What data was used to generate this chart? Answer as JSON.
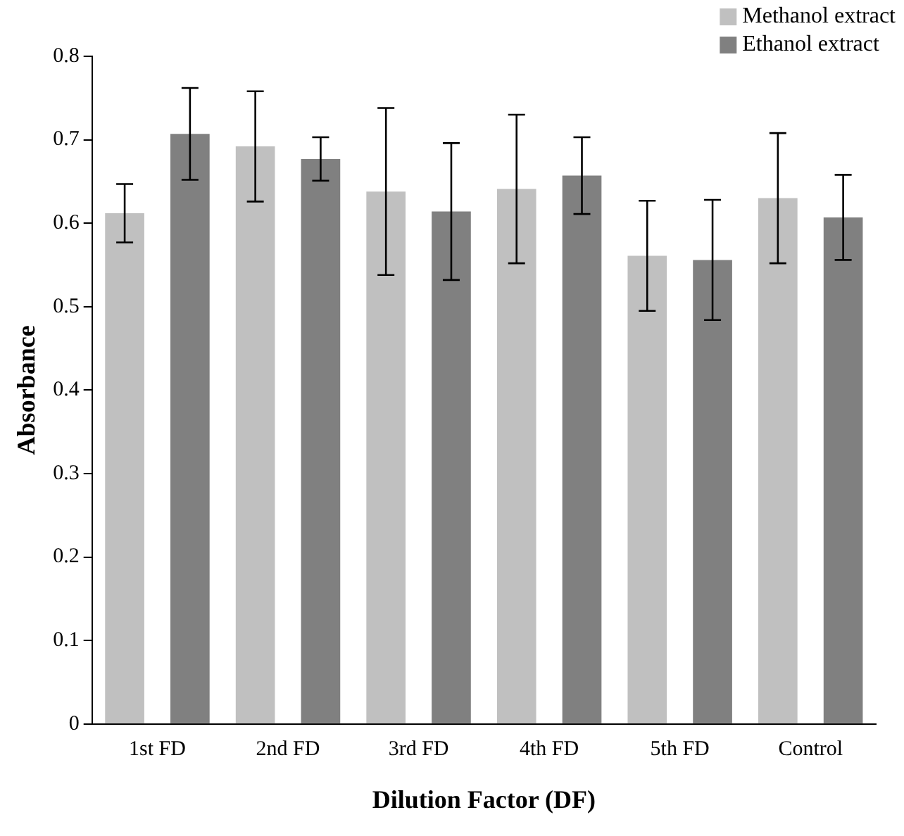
{
  "chart_data": {
    "type": "bar",
    "xlabel": "Dilution Factor (DF)",
    "ylabel": "Absorbance",
    "categories": [
      "1st FD",
      "2nd FD",
      "3rd FD",
      "4th FD",
      "5th FD",
      "Control"
    ],
    "series": [
      {
        "name": "Methanol extract",
        "color": "#c0c0c0",
        "values": [
          0.612,
          0.692,
          0.638,
          0.641,
          0.561,
          0.63
        ],
        "errors": [
          0.035,
          0.066,
          0.1,
          0.089,
          0.066,
          0.078
        ]
      },
      {
        "name": "Ethanol extract",
        "color": "#808080",
        "values": [
          0.707,
          0.677,
          0.614,
          0.657,
          0.556,
          0.607
        ],
        "errors": [
          0.055,
          0.026,
          0.082,
          0.046,
          0.072,
          0.051
        ]
      }
    ],
    "ylim": [
      0,
      0.8
    ],
    "yticks": [
      0,
      0.1,
      0.2,
      0.3,
      0.4,
      0.5,
      0.6,
      0.7,
      0.8
    ],
    "grid": false,
    "legend": "top right"
  }
}
